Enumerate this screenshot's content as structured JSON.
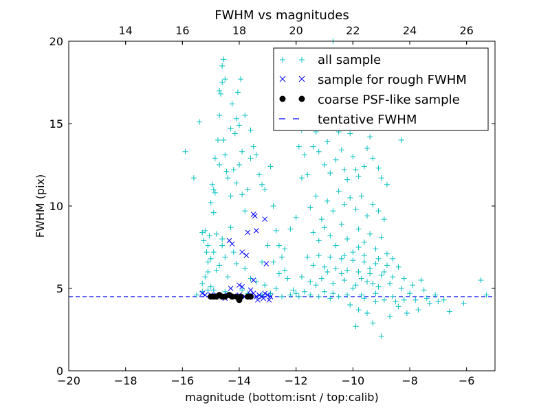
{
  "chart_data": {
    "type": "scatter",
    "title": "FWHM vs magnitudes",
    "xlabel": "magnitude (bottom:isnt / top:calib)",
    "ylabel": "FWHM (pix)",
    "xlim": [
      -20,
      -5
    ],
    "ylim": [
      0,
      20
    ],
    "xticks": [
      "−20",
      "−18",
      "−16",
      "−14",
      "−12",
      "−10",
      "−8",
      "−6"
    ],
    "xtick_values": [
      -20,
      -18,
      -16,
      -14,
      -12,
      -10,
      -8,
      -6
    ],
    "yticks": [
      "0",
      "5",
      "10",
      "15",
      "20"
    ],
    "ytick_values": [
      0,
      5,
      10,
      15,
      20
    ],
    "top_axis": {
      "offset": 32,
      "ticks": [
        "14",
        "16",
        "18",
        "20",
        "22",
        "24",
        "26"
      ],
      "tick_values": [
        14,
        16,
        18,
        20,
        22,
        24,
        26
      ]
    },
    "grid": false,
    "legend_position": "top-right",
    "legend": [
      {
        "label": "all sample",
        "marker": "+",
        "color": "#00bfbf"
      },
      {
        "label": "sample for rough FWHM",
        "marker": "x",
        "color": "#0000ff"
      },
      {
        "label": "coarse PSF-like sample",
        "marker": "o",
        "color": "#000000"
      },
      {
        "label": "tentative FWHM",
        "marker": "dashed-line",
        "color": "#0000ff"
      }
    ],
    "tentative_fwhm": 4.5,
    "series": [
      {
        "name": "all sample",
        "marker": "+",
        "color": "#00bfbf",
        "points": [
          [
            -15.9,
            13.3
          ],
          [
            -15.6,
            11.7
          ],
          [
            -15.4,
            15.1
          ],
          [
            -15.3,
            8.4
          ],
          [
            -15.25,
            7.9
          ],
          [
            -15.2,
            8.5
          ],
          [
            -15.15,
            7.2
          ],
          [
            -15.1,
            6.6
          ],
          [
            -15.05,
            8.2
          ],
          [
            -15.0,
            10.2
          ],
          [
            -14.95,
            11.3
          ],
          [
            -14.9,
            11.0
          ],
          [
            -14.85,
            12.9
          ],
          [
            -15.3,
            5.3
          ],
          [
            -15.2,
            5.7
          ],
          [
            -15.1,
            6.0
          ],
          [
            -15.0,
            5.1
          ],
          [
            -14.9,
            9.6
          ],
          [
            -14.85,
            10.8
          ],
          [
            -14.8,
            8.3
          ],
          [
            -14.7,
            17.0
          ],
          [
            -14.6,
            18.5
          ],
          [
            -14.55,
            18.9
          ],
          [
            -14.5,
            17.7
          ],
          [
            -14.6,
            17.5
          ],
          [
            -14.65,
            16.8
          ],
          [
            -14.7,
            15.5
          ],
          [
            -14.55,
            14.0
          ],
          [
            -14.5,
            13.1
          ],
          [
            -14.45,
            12.1
          ],
          [
            -14.4,
            11.7
          ],
          [
            -14.7,
            12.5
          ],
          [
            -14.75,
            14.0
          ],
          [
            -14.3,
            10.6
          ],
          [
            -14.25,
            16.2
          ],
          [
            -14.3,
            14.7
          ],
          [
            -14.1,
            15.3
          ],
          [
            -14.0,
            14.9
          ],
          [
            -13.95,
            17.7
          ],
          [
            -14.05,
            16.9
          ],
          [
            -14.15,
            14.4
          ],
          [
            -14.2,
            12.2
          ],
          [
            -14.1,
            11.4
          ],
          [
            -14.0,
            12.5
          ],
          [
            -13.9,
            10.7
          ],
          [
            -13.8,
            9.7
          ],
          [
            -13.7,
            11.0
          ],
          [
            -13.6,
            12.9
          ],
          [
            -13.5,
            13.6
          ],
          [
            -13.4,
            13.1
          ],
          [
            -13.3,
            11.9
          ],
          [
            -13.2,
            11.3
          ],
          [
            -13.1,
            11.0
          ],
          [
            -12.9,
            12.4
          ],
          [
            -12.8,
            10.0
          ],
          [
            -12.7,
            8.5
          ],
          [
            -12.6,
            7.6
          ],
          [
            -12.5,
            6.9
          ],
          [
            -12.4,
            6.1
          ],
          [
            -12.3,
            5.6
          ],
          [
            -13.6,
            14.6
          ],
          [
            -13.8,
            15.5
          ],
          [
            -13.9,
            13.3
          ],
          [
            -14.3,
            8.7
          ],
          [
            -14.2,
            7.2
          ],
          [
            -14.1,
            6.5
          ],
          [
            -14.4,
            5.7
          ],
          [
            -14.5,
            6.9
          ],
          [
            -14.6,
            7.6
          ],
          [
            -14.8,
            6.1
          ],
          [
            -13.8,
            6.2
          ],
          [
            -13.6,
            5.6
          ],
          [
            -13.4,
            5.4
          ],
          [
            -13.2,
            6.6
          ],
          [
            -13.0,
            7.6
          ],
          [
            -12.8,
            6.6
          ],
          [
            -12.6,
            5.9
          ],
          [
            -12.4,
            7.4
          ],
          [
            -12.2,
            8.6
          ],
          [
            -12.0,
            9.3
          ],
          [
            -11.8,
            11.7
          ],
          [
            -11.9,
            13.6
          ],
          [
            -11.8,
            14.6
          ],
          [
            -11.7,
            13.1
          ],
          [
            -11.6,
            11.9
          ],
          [
            -11.4,
            13.6
          ],
          [
            -11.3,
            14.5
          ],
          [
            -11.2,
            13.3
          ],
          [
            -11.0,
            12.5
          ],
          [
            -10.9,
            13.9
          ],
          [
            -10.8,
            12.0
          ],
          [
            -10.6,
            12.8
          ],
          [
            -10.5,
            14.5
          ],
          [
            -10.4,
            13.4
          ],
          [
            -10.3,
            12.2
          ],
          [
            -10.2,
            11.6
          ],
          [
            -10.1,
            14.4
          ],
          [
            -10.0,
            13.0
          ],
          [
            -9.9,
            12.2
          ],
          [
            -9.8,
            11.8
          ],
          [
            -9.6,
            12.4
          ],
          [
            -9.5,
            13.5
          ],
          [
            -9.4,
            14.2
          ],
          [
            -9.3,
            12.9
          ],
          [
            -9.1,
            12.3
          ],
          [
            -9.0,
            11.7
          ],
          [
            -8.8,
            11.3
          ],
          [
            -8.3,
            14.0
          ],
          [
            -10.7,
            20.0
          ],
          [
            -11.5,
            9.9
          ],
          [
            -11.3,
            10.6
          ],
          [
            -11.1,
            9.2
          ],
          [
            -10.9,
            10.3
          ],
          [
            -10.7,
            9.7
          ],
          [
            -10.5,
            10.9
          ],
          [
            -10.3,
            10.1
          ],
          [
            -10.1,
            10.5
          ],
          [
            -9.9,
            9.8
          ],
          [
            -9.7,
            10.6
          ],
          [
            -9.5,
            9.4
          ],
          [
            -9.3,
            10.1
          ],
          [
            -9.1,
            9.7
          ],
          [
            -8.9,
            9.2
          ],
          [
            -11.4,
            8.4
          ],
          [
            -11.2,
            7.9
          ],
          [
            -11.0,
            8.7
          ],
          [
            -10.8,
            8.2
          ],
          [
            -10.6,
            7.6
          ],
          [
            -10.4,
            8.9
          ],
          [
            -10.2,
            8.0
          ],
          [
            -10.0,
            7.2
          ],
          [
            -9.8,
            8.6
          ],
          [
            -9.6,
            7.8
          ],
          [
            -9.4,
            8.3
          ],
          [
            -9.2,
            7.4
          ],
          [
            -9.0,
            8.1
          ],
          [
            -8.8,
            7.1
          ],
          [
            -8.6,
            6.8
          ],
          [
            -11.6,
            6.9
          ],
          [
            -11.4,
            6.4
          ],
          [
            -11.2,
            7.0
          ],
          [
            -11.0,
            6.3
          ],
          [
            -10.8,
            6.9
          ],
          [
            -10.6,
            6.2
          ],
          [
            -10.4,
            6.8
          ],
          [
            -10.2,
            6.1
          ],
          [
            -10.0,
            6.7
          ],
          [
            -9.8,
            6.0
          ],
          [
            -9.6,
            6.6
          ],
          [
            -9.4,
            5.9
          ],
          [
            -9.2,
            6.5
          ],
          [
            -9.0,
            5.8
          ],
          [
            -8.8,
            6.4
          ],
          [
            -8.6,
            5.7
          ],
          [
            -8.4,
            6.3
          ],
          [
            -8.2,
            5.6
          ],
          [
            -11.8,
            5.7
          ],
          [
            -11.5,
            5.4
          ],
          [
            -11.1,
            5.6
          ],
          [
            -10.7,
            5.3
          ],
          [
            -10.3,
            5.5
          ],
          [
            -9.9,
            5.2
          ],
          [
            -9.5,
            5.4
          ],
          [
            -9.1,
            5.1
          ],
          [
            -8.7,
            5.3
          ],
          [
            -8.3,
            5.0
          ],
          [
            -7.9,
            5.2
          ],
          [
            -7.5,
            4.9
          ],
          [
            -10.1,
            4.0
          ],
          [
            -9.8,
            3.7
          ],
          [
            -9.5,
            3.5
          ],
          [
            -9.3,
            2.9
          ],
          [
            -9.9,
            2.7
          ],
          [
            -9.0,
            2.1
          ],
          [
            -8.7,
            3.3
          ],
          [
            -8.4,
            3.9
          ],
          [
            -8.1,
            3.5
          ],
          [
            -7.7,
            3.7
          ],
          [
            -7.3,
            4.1
          ],
          [
            -7.0,
            4.2
          ],
          [
            -6.6,
            3.6
          ],
          [
            -6.1,
            4.1
          ],
          [
            -5.5,
            5.5
          ],
          [
            -5.3,
            4.6
          ],
          [
            -7.6,
            5.5
          ],
          [
            -7.1,
            4.6
          ],
          [
            -6.8,
            4.3
          ],
          [
            -7.8,
            4.3
          ],
          [
            -8.0,
            4.7
          ],
          [
            -8.9,
            4.3
          ],
          [
            -9.7,
            4.6
          ],
          [
            -10.5,
            4.5
          ],
          [
            -11.0,
            4.8
          ],
          [
            -11.5,
            4.6
          ],
          [
            -12.0,
            4.7
          ],
          [
            -12.5,
            4.5
          ],
          [
            -12.9,
            4.7
          ],
          [
            -13.2,
            4.6
          ],
          [
            -15.5,
            4.6
          ],
          [
            -15.3,
            4.8
          ],
          [
            -15.1,
            4.9
          ],
          [
            -14.9,
            4.9
          ],
          [
            -14.7,
            4.6
          ],
          [
            -14.5,
            4.8
          ],
          [
            -13.9,
            4.9
          ],
          [
            -13.7,
            4.7
          ],
          [
            -12.2,
            4.6
          ],
          [
            -11.7,
            4.8
          ],
          [
            -11.2,
            4.5
          ],
          [
            -10.7,
            4.7
          ],
          [
            -10.2,
            4.6
          ],
          [
            -9.6,
            4.4
          ],
          [
            -9.2,
            4.7
          ],
          [
            -8.6,
            4.5
          ],
          [
            -8.2,
            4.3
          ],
          [
            -7.4,
            4.4
          ],
          [
            -9.6,
            7.0
          ],
          [
            -9.4,
            6.2
          ],
          [
            -9.7,
            5.6
          ],
          [
            -9.3,
            5.3
          ],
          [
            -10.4,
            5.9
          ],
          [
            -10.0,
            5.0
          ],
          [
            -9.8,
            7.5
          ],
          [
            -9.1,
            6.8
          ],
          [
            -8.9,
            6.0
          ],
          [
            -10.3,
            7.0
          ],
          [
            -10.9,
            6.0
          ],
          [
            -11.3,
            5.2
          ],
          [
            -12.7,
            5.0
          ],
          [
            -13.1,
            5.2
          ],
          [
            -14.9,
            7.2
          ],
          [
            -15.0,
            6.8
          ],
          [
            -15.1,
            7.6
          ],
          [
            -14.6,
            8.0
          ],
          [
            -14.7,
            6.4
          ],
          [
            -12.1,
            4.9
          ],
          [
            -11.9,
            4.5
          ],
          [
            -10.8,
            4.4
          ],
          [
            -9.2,
            4.2
          ],
          [
            -8.5,
            4.2
          ]
        ]
      },
      {
        "name": "sample for rough FWHM",
        "marker": "x",
        "color": "#0000ff",
        "points": [
          [
            -13.5,
            9.5
          ],
          [
            -13.45,
            9.4
          ],
          [
            -13.4,
            8.5
          ],
          [
            -13.1,
            9.2
          ],
          [
            -13.7,
            8.4
          ],
          [
            -14.35,
            7.9
          ],
          [
            -14.25,
            7.7
          ],
          [
            -13.9,
            7.2
          ],
          [
            -13.75,
            7.0
          ],
          [
            -13.05,
            6.5
          ],
          [
            -13.5,
            5.5
          ],
          [
            -14.0,
            5.2
          ],
          [
            -13.9,
            5.1
          ],
          [
            -14.3,
            5.0
          ],
          [
            -13.6,
            4.9
          ],
          [
            -15.3,
            4.7
          ],
          [
            -15.2,
            4.6
          ],
          [
            -15.0,
            4.6
          ],
          [
            -14.8,
            4.6
          ],
          [
            -14.6,
            4.5
          ],
          [
            -14.4,
            4.6
          ],
          [
            -14.2,
            4.5
          ],
          [
            -14.0,
            4.6
          ],
          [
            -13.8,
            4.5
          ],
          [
            -13.6,
            4.6
          ],
          [
            -13.5,
            4.7
          ],
          [
            -13.4,
            4.5
          ],
          [
            -13.3,
            4.6
          ],
          [
            -13.2,
            4.5
          ],
          [
            -13.1,
            4.7
          ],
          [
            -13.0,
            4.6
          ],
          [
            -12.9,
            4.5
          ],
          [
            -13.35,
            4.3
          ],
          [
            -13.15,
            4.4
          ],
          [
            -12.95,
            4.3
          ],
          [
            -14.5,
            4.4
          ]
        ]
      },
      {
        "name": "coarse PSF-like sample",
        "marker": "o",
        "color": "#000000",
        "points": [
          [
            -15.0,
            4.5
          ],
          [
            -14.9,
            4.5
          ],
          [
            -14.8,
            4.5
          ],
          [
            -14.7,
            4.6
          ],
          [
            -14.6,
            4.5
          ],
          [
            -14.5,
            4.5
          ],
          [
            -14.35,
            4.6
          ],
          [
            -14.25,
            4.5
          ],
          [
            -14.1,
            4.5
          ],
          [
            -13.95,
            4.5
          ],
          [
            -14.0,
            4.3
          ],
          [
            -13.7,
            4.5
          ],
          [
            -13.6,
            4.5
          ]
        ]
      }
    ]
  }
}
